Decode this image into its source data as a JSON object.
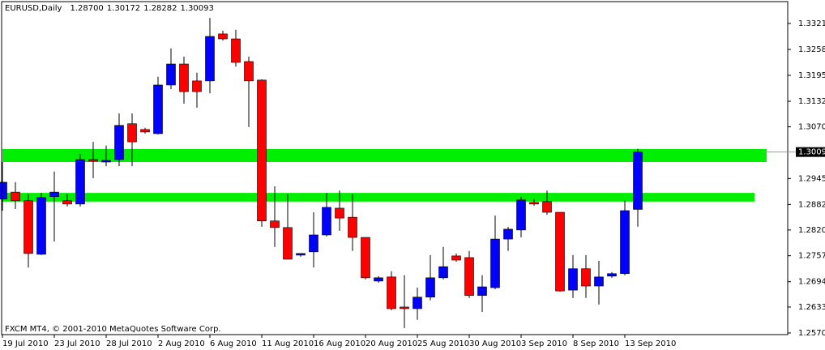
{
  "chart_data": {
    "type": "candlestick",
    "title": "EURUSD,Daily",
    "ohlc_labels": [
      "1.28700",
      "1.30172",
      "1.28282",
      "1.30093"
    ],
    "footer": "FXCM MT4, © 2001-2010 MetaQuotes Software Corp.",
    "categories": [
      "19 Jul 2010",
      null,
      null,
      null,
      "23 Jul 2010",
      null,
      null,
      null,
      "28 Jul 2010",
      null,
      null,
      null,
      "2 Aug 2010",
      null,
      null,
      null,
      "6 Aug 2010",
      null,
      null,
      null,
      "11 Aug 2010",
      null,
      null,
      null,
      "16 Aug 2010",
      null,
      null,
      null,
      "20 Aug 2010",
      null,
      null,
      null,
      "25 Aug 2010",
      null,
      null,
      null,
      "30 Aug 2010",
      null,
      null,
      null,
      "3 Sep 2010",
      null,
      null,
      null,
      "8 Sep 2010",
      null,
      null,
      null,
      "13 Sep 2010",
      null
    ],
    "open": [
      1.2895,
      1.2912,
      1.2891,
      1.2761,
      1.2901,
      1.2891,
      1.2883,
      1.2991,
      1.2985,
      1.2991,
      1.3078,
      1.3064,
      1.3054,
      1.3172,
      1.3223,
      1.3182,
      1.3182,
      1.3296,
      1.3284,
      1.3229,
      1.3184,
      1.2842,
      1.2826,
      1.2759,
      1.2767,
      1.2808,
      1.2873,
      1.2851,
      1.2802,
      1.2696,
      1.2706,
      1.2633,
      1.2629,
      1.2657,
      1.2704,
      1.2757,
      1.2753,
      1.2661,
      1.268,
      1.2798,
      1.282,
      1.2887,
      1.2889,
      1.2863,
      1.2674,
      1.2726,
      1.2684,
      1.2708,
      1.2714,
      1.287
    ],
    "high": [
      1.2985,
      1.2936,
      1.2907,
      1.291,
      1.2962,
      1.2907,
      1.3005,
      1.3034,
      1.3025,
      1.3103,
      1.3103,
      1.3068,
      1.3192,
      1.3261,
      1.3241,
      1.3202,
      1.3335,
      1.3304,
      1.3306,
      1.3241,
      1.3186,
      1.2926,
      1.2907,
      1.2763,
      1.2863,
      1.291,
      1.2916,
      1.2907,
      1.2802,
      1.2708,
      1.272,
      1.271,
      1.268,
      1.2759,
      1.2779,
      1.2763,
      1.2769,
      1.271,
      1.2855,
      1.2828,
      1.2901,
      1.2895,
      1.2916,
      1.2863,
      1.2759,
      1.2759,
      1.2745,
      1.2718,
      1.2891,
      1.30172
    ],
    "low": [
      1.2867,
      1.2871,
      1.2729,
      1.2759,
      1.2792,
      1.2877,
      1.2877,
      1.2946,
      1.2975,
      1.2975,
      1.2975,
      1.3054,
      1.3052,
      1.3162,
      1.3127,
      1.3117,
      1.3152,
      1.328,
      1.3217,
      1.307,
      1.2828,
      1.2779,
      1.2749,
      1.2755,
      1.2729,
      1.2804,
      1.2818,
      1.2769,
      1.27,
      1.2692,
      1.2625,
      1.2582,
      1.2602,
      1.2649,
      1.27,
      1.2743,
      1.2655,
      1.2621,
      1.2676,
      1.2769,
      1.2802,
      1.2879,
      1.2857,
      1.267,
      1.2655,
      1.2655,
      1.2639,
      1.2704,
      1.271,
      1.28282
    ],
    "close": [
      1.2936,
      1.2891,
      1.2763,
      1.2899,
      1.2912,
      1.2883,
      1.2991,
      1.2987,
      1.2989,
      1.3074,
      1.3034,
      1.3058,
      1.3172,
      1.3223,
      1.3156,
      1.3156,
      1.329,
      1.3284,
      1.3227,
      1.3182,
      1.2842,
      1.2826,
      1.2749,
      1.2763,
      1.2808,
      1.2875,
      1.2849,
      1.2802,
      1.2704,
      1.2704,
      1.2629,
      1.2629,
      1.2657,
      1.2704,
      1.2731,
      1.2747,
      1.2661,
      1.2682,
      1.2798,
      1.2822,
      1.2893,
      1.2883,
      1.2863,
      1.2672,
      1.2726,
      1.2684,
      1.2706,
      1.2714,
      1.2867,
      1.30093
    ],
    "up_color": "#0000ff",
    "down_color": "#ff0000",
    "wick_color": "#000000",
    "zones": [
      [
        1.2985,
        1.30166
      ],
      [
        1.2889,
        1.291
      ]
    ],
    "zone_color": "#00ee00",
    "last_price": {
      "value": 1.30093,
      "label": "1.30093"
    },
    "ylim": [
      1.2566,
      1.3345
    ],
    "yticks": [
      {
        "value": 1.33215,
        "label": "1.33215"
      },
      {
        "value": 1.32585,
        "label": "1.32585"
      },
      {
        "value": 1.31955,
        "label": "1.31955"
      },
      {
        "value": 1.31325,
        "label": "1.31325"
      },
      {
        "value": 1.30705,
        "label": "1.30705"
      },
      {
        "value": 1.2945,
        "label": "1.29450"
      },
      {
        "value": 1.2882,
        "label": "1.28820"
      },
      {
        "value": 1.282,
        "label": "1.28200"
      },
      {
        "value": 1.27575,
        "label": "1.27575"
      },
      {
        "value": 1.26945,
        "label": "1.26945"
      },
      {
        "value": 1.2633,
        "label": "1.26330"
      },
      {
        "value": 1.257,
        "label": "1.25700"
      }
    ]
  }
}
